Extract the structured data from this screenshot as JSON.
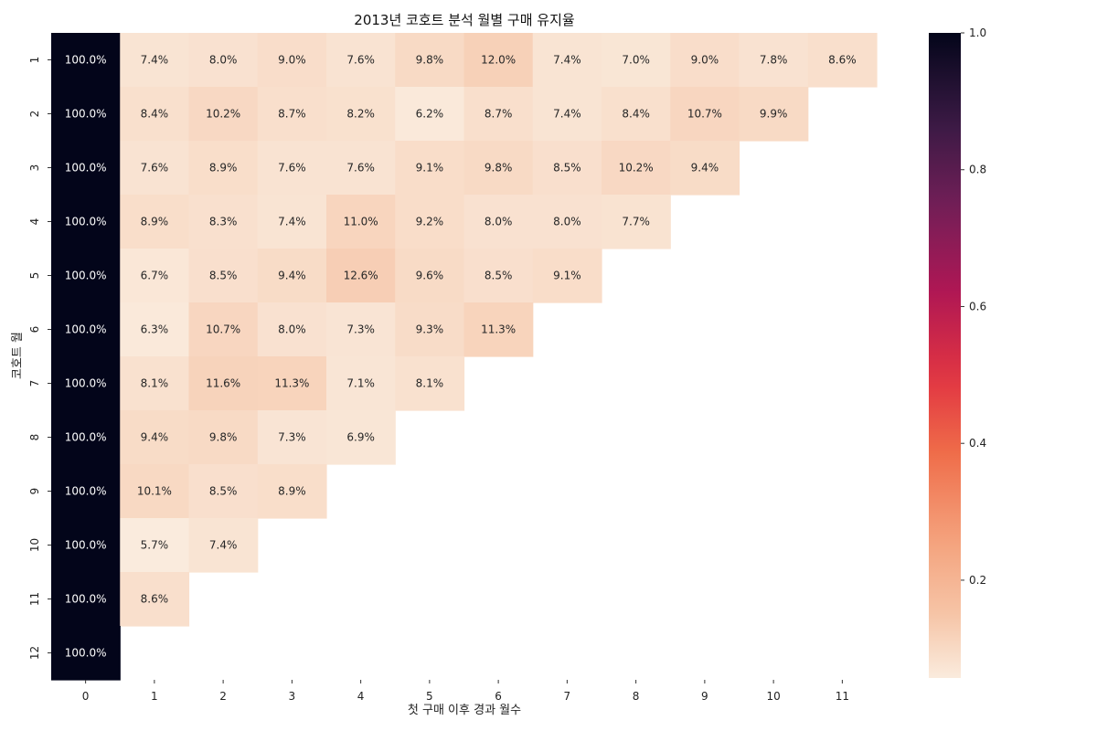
{
  "chart_data": {
    "type": "heatmap",
    "title": "2013년 코호트 분석 월별 구매 유지율",
    "xlabel": "첫 구매 이후 경과 월수",
    "ylabel": "코호트 월",
    "x_categories": [
      "0",
      "1",
      "2",
      "3",
      "4",
      "5",
      "6",
      "7",
      "8",
      "9",
      "10",
      "11"
    ],
    "y_categories": [
      "1",
      "2",
      "3",
      "4",
      "5",
      "6",
      "7",
      "8",
      "9",
      "10",
      "11",
      "12"
    ],
    "values": [
      [
        1.0,
        0.074,
        0.08,
        0.09,
        0.076,
        0.098,
        0.12,
        0.074,
        0.07,
        0.09,
        0.078,
        0.086
      ],
      [
        1.0,
        0.084,
        0.102,
        0.087,
        0.082,
        0.062,
        0.087,
        0.074,
        0.084,
        0.107,
        0.099,
        null
      ],
      [
        1.0,
        0.076,
        0.089,
        0.076,
        0.076,
        0.091,
        0.098,
        0.085,
        0.102,
        0.094,
        null,
        null
      ],
      [
        1.0,
        0.089,
        0.083,
        0.074,
        0.11,
        0.092,
        0.08,
        0.08,
        0.077,
        null,
        null,
        null
      ],
      [
        1.0,
        0.067,
        0.085,
        0.094,
        0.126,
        0.096,
        0.085,
        0.091,
        null,
        null,
        null,
        null
      ],
      [
        1.0,
        0.063,
        0.107,
        0.08,
        0.073,
        0.093,
        0.113,
        null,
        null,
        null,
        null,
        null
      ],
      [
        1.0,
        0.081,
        0.116,
        0.113,
        0.071,
        0.081,
        null,
        null,
        null,
        null,
        null,
        null
      ],
      [
        1.0,
        0.094,
        0.098,
        0.073,
        0.069,
        null,
        null,
        null,
        null,
        null,
        null,
        null
      ],
      [
        1.0,
        0.101,
        0.085,
        0.089,
        null,
        null,
        null,
        null,
        null,
        null,
        null,
        null
      ],
      [
        1.0,
        0.057,
        0.074,
        null,
        null,
        null,
        null,
        null,
        null,
        null,
        null,
        null
      ],
      [
        1.0,
        0.086,
        null,
        null,
        null,
        null,
        null,
        null,
        null,
        null,
        null,
        null
      ],
      [
        1.0,
        null,
        null,
        null,
        null,
        null,
        null,
        null,
        null,
        null,
        null,
        null
      ]
    ],
    "cell_labels": [
      [
        "100.0%",
        "7.4%",
        "8.0%",
        "9.0%",
        "7.6%",
        "9.8%",
        "12.0%",
        "7.4%",
        "7.0%",
        "9.0%",
        "7.8%",
        "8.6%"
      ],
      [
        "100.0%",
        "8.4%",
        "10.2%",
        "8.7%",
        "8.2%",
        "6.2%",
        "8.7%",
        "7.4%",
        "8.4%",
        "10.7%",
        "9.9%",
        null
      ],
      [
        "100.0%",
        "7.6%",
        "8.9%",
        "7.6%",
        "7.6%",
        "9.1%",
        "9.8%",
        "8.5%",
        "10.2%",
        "9.4%",
        null,
        null
      ],
      [
        "100.0%",
        "8.9%",
        "8.3%",
        "7.4%",
        "11.0%",
        "9.2%",
        "8.0%",
        "8.0%",
        "7.7%",
        null,
        null,
        null
      ],
      [
        "100.0%",
        "6.7%",
        "8.5%",
        "9.4%",
        "12.6%",
        "9.6%",
        "8.5%",
        "9.1%",
        null,
        null,
        null,
        null
      ],
      [
        "100.0%",
        "6.3%",
        "10.7%",
        "8.0%",
        "7.3%",
        "9.3%",
        "11.3%",
        null,
        null,
        null,
        null,
        null
      ],
      [
        "100.0%",
        "8.1%",
        "11.6%",
        "11.3%",
        "7.1%",
        "8.1%",
        null,
        null,
        null,
        null,
        null,
        null
      ],
      [
        "100.0%",
        "9.4%",
        "9.8%",
        "7.3%",
        "6.9%",
        null,
        null,
        null,
        null,
        null,
        null,
        null
      ],
      [
        "100.0%",
        "10.1%",
        "8.5%",
        "8.9%",
        null,
        null,
        null,
        null,
        null,
        null,
        null,
        null
      ],
      [
        "100.0%",
        "5.7%",
        "7.4%",
        null,
        null,
        null,
        null,
        null,
        null,
        null,
        null,
        null
      ],
      [
        "100.0%",
        "8.6%",
        null,
        null,
        null,
        null,
        null,
        null,
        null,
        null,
        null,
        null
      ],
      [
        "100.0%",
        null,
        null,
        null,
        null,
        null,
        null,
        null,
        null,
        null,
        null,
        null
      ]
    ],
    "colorscale": "rocket_r",
    "vmin": 0.057,
    "vmax": 1.0,
    "colorbar": {
      "ticks": [
        0.2,
        0.4,
        0.6,
        0.8,
        1.0
      ],
      "tick_labels": [
        "0.2",
        "0.4",
        "0.6",
        "0.8",
        "1.0"
      ]
    },
    "grid": false,
    "legend": "colorbar-right"
  }
}
